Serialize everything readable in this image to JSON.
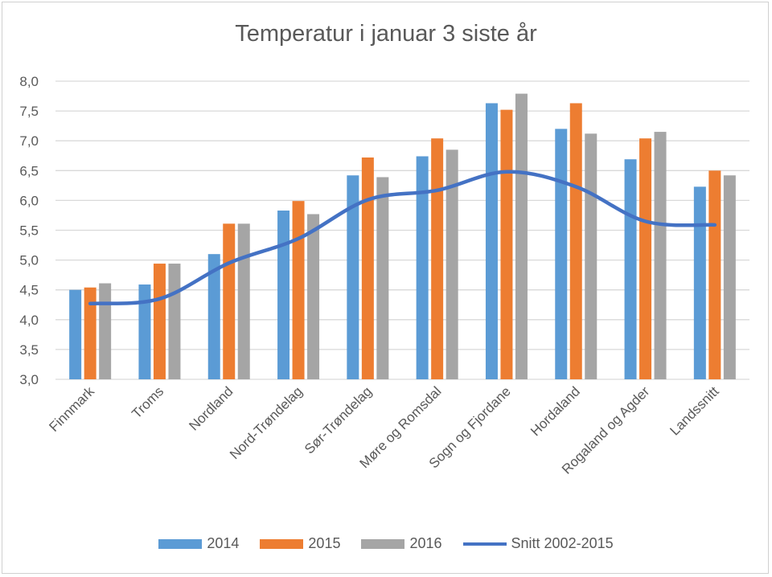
{
  "chart_data": {
    "type": "bar",
    "title": "Temperatur i januar 3 siste år",
    "categories": [
      "Finnmark",
      "Troms",
      "Nordland",
      "Nord-Trøndelag",
      "Sør-Trøndelag",
      "Møre og Romsdal",
      "Sogn og Fjordane",
      "Hordaland",
      "Rogaland og Agder",
      "Landssnitt"
    ],
    "series": [
      {
        "name": "2014",
        "type": "bar",
        "color": "#5B9BD5",
        "values": [
          4.5,
          4.59,
          5.1,
          5.83,
          6.42,
          6.74,
          7.63,
          7.2,
          6.69,
          6.23
        ]
      },
      {
        "name": "2015",
        "type": "bar",
        "color": "#ED7D31",
        "values": [
          4.54,
          4.94,
          5.61,
          5.99,
          6.72,
          7.04,
          7.52,
          7.63,
          7.04,
          6.5
        ]
      },
      {
        "name": "2016",
        "type": "bar",
        "color": "#A5A5A5",
        "values": [
          4.61,
          4.94,
          5.61,
          5.77,
          6.39,
          6.85,
          7.79,
          7.12,
          7.15,
          6.42
        ]
      },
      {
        "name": "Snitt 2002-2015",
        "type": "line",
        "color": "#4472C4",
        "values": [
          4.27,
          4.35,
          4.95,
          5.36,
          6.01,
          6.17,
          6.48,
          6.23,
          5.65,
          5.59
        ]
      }
    ],
    "ylim": [
      3.0,
      8.0
    ],
    "yticks": [
      "3,0",
      "3,5",
      "4,0",
      "4,5",
      "5,0",
      "5,5",
      "6,0",
      "6,5",
      "7,0",
      "7,5",
      "8,0"
    ],
    "grid": true,
    "legend": "bottom",
    "xlabel": "",
    "ylabel": ""
  }
}
